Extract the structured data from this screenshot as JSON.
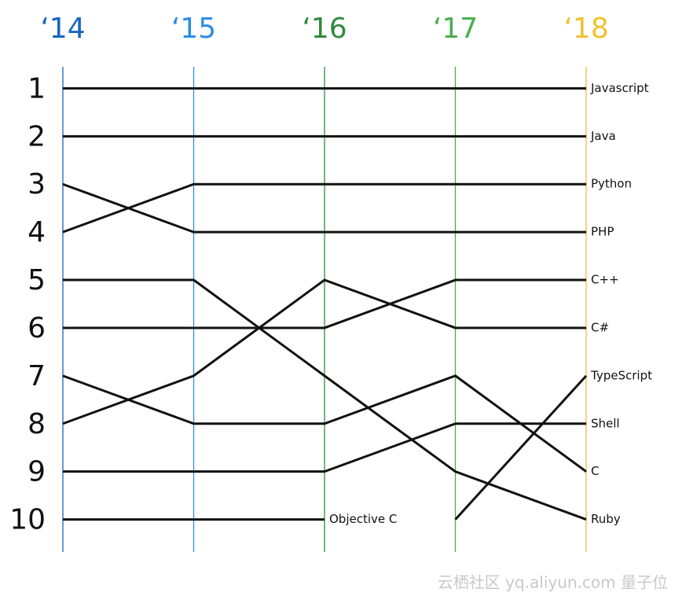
{
  "chart_data": {
    "type": "bump",
    "categories": [
      "‘14",
      "‘15",
      "‘16",
      "‘17",
      "‘18"
    ],
    "category_colors": [
      "#1565c0",
      "#2d8ee6",
      "#2e8b3e",
      "#4cae50",
      "#f2c12e"
    ],
    "ylim": [
      0.55,
      10.68
    ],
    "y_inverted": true,
    "yticks": [
      1,
      2,
      3,
      4,
      5,
      6,
      7,
      8,
      9,
      10
    ],
    "series": [
      {
        "name": "Javascript",
        "color": "#111111",
        "values": [
          1,
          1,
          1,
          1,
          1
        ]
      },
      {
        "name": "Java",
        "color": "#111111",
        "values": [
          2,
          2,
          2,
          2,
          2
        ]
      },
      {
        "name": "Python",
        "color": "#111111",
        "values": [
          4,
          3,
          3,
          3,
          3
        ]
      },
      {
        "name": "PHP",
        "color": "#111111",
        "values": [
          3,
          4,
          4,
          4,
          4
        ]
      },
      {
        "name": "C++",
        "color": "#111111",
        "values": [
          6,
          6,
          6,
          5,
          5
        ]
      },
      {
        "name": "C#",
        "color": "#111111",
        "values": [
          8,
          7,
          5,
          6,
          6
        ]
      },
      {
        "name": "TypeScript",
        "color": "#111111",
        "values": [
          null,
          null,
          null,
          10,
          7
        ]
      },
      {
        "name": "Shell",
        "color": "#111111",
        "values": [
          9,
          9,
          9,
          8,
          8
        ]
      },
      {
        "name": "C",
        "color": "#111111",
        "values": [
          7,
          8,
          8,
          7,
          9
        ]
      },
      {
        "name": "Ruby",
        "color": "#111111",
        "values": [
          5,
          5,
          7,
          9,
          10
        ]
      },
      {
        "name": "Objective C",
        "color": "#111111",
        "values": [
          10,
          10,
          10,
          null,
          null
        ]
      }
    ]
  },
  "watermark": "云栖社区 yq.aliyun.com  量子位"
}
